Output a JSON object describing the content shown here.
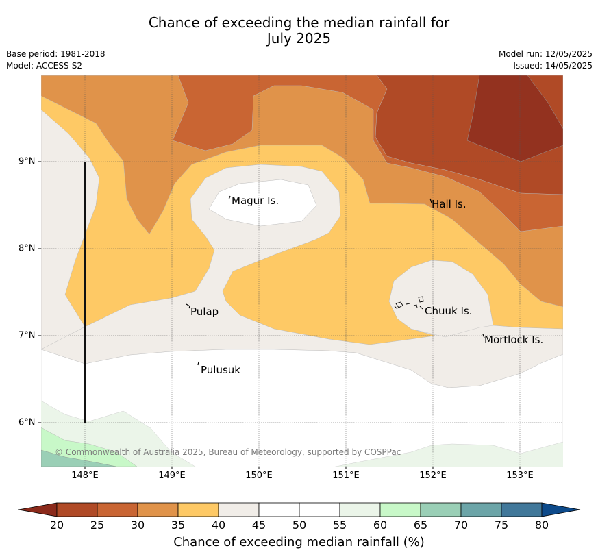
{
  "title": {
    "line1": "Chance of exceeding the median rainfall for",
    "line2": "July 2025"
  },
  "meta": {
    "base_period": "Base period: 1981-2018",
    "model": "Model: ACCESS-S2",
    "model_run": "Model run: 12/05/2025",
    "issued": "Issued: 14/05/2025"
  },
  "credit": "© Commonwealth of Australia 2025, Bureau of Meteorology, supported by COSPPac",
  "axes": {
    "x_ticks": [
      "148°E",
      "149°E",
      "150°E",
      "151°E",
      "152°E",
      "153°E"
    ],
    "y_ticks": [
      "9°N",
      "8°N",
      "7°N",
      "6°N"
    ]
  },
  "places": {
    "magur": "Magur Is.",
    "hall": "Hall Is.",
    "pulap": "Pulap",
    "chuuk": "Chuuk Is.",
    "mortlock": "Mortlock Is.",
    "pulusuk": "Pulusuk"
  },
  "colorbar": {
    "title": "Chance of exceeding median rainfall (%)",
    "labels": [
      "20",
      "25",
      "30",
      "35",
      "40",
      "45",
      "50",
      "55",
      "60",
      "65",
      "70",
      "75",
      "80"
    ],
    "low_color": "#8b2a1b",
    "high_color": "#0d4a8a",
    "colors": [
      "#b04a26",
      "#c96533",
      "#e0934a",
      "#fec965",
      "#f1ede8",
      "#ffffff",
      "#ffffff",
      "#ebf5e9",
      "#c8f8c8",
      "#9acfb6",
      "#6ca5a8",
      "#41789a"
    ]
  }
}
